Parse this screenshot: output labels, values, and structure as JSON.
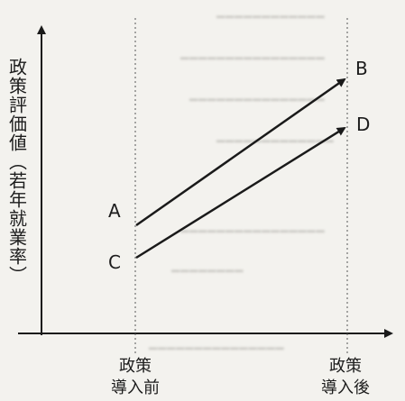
{
  "diagram": {
    "ylabel": "政策評価値（若年就業率）",
    "x_ticks": [
      "政策\n導入前",
      "政策\n導入後"
    ],
    "points": [
      {
        "label": "A"
      },
      {
        "label": "B"
      },
      {
        "label": "C"
      },
      {
        "label": "D"
      }
    ],
    "arrows": [
      {
        "from": "A",
        "to": "B"
      },
      {
        "from": "C",
        "to": "D"
      }
    ],
    "colors": {
      "line": "#1a1a1a",
      "background": "#f3f2ee",
      "ghost_text": "#c9c8c3"
    }
  }
}
